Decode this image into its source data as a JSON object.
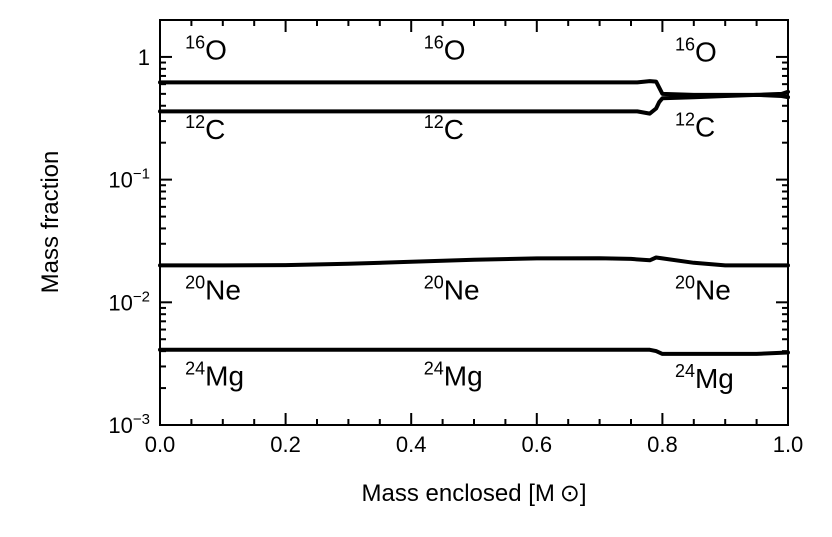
{
  "chart_data": {
    "type": "line",
    "title": "",
    "xlabel": "Mass enclosed [M ⊙]",
    "ylabel": "Mass fraction",
    "xlim": [
      0.0,
      1.0
    ],
    "ylim": [
      0.001,
      2.0
    ],
    "yscale": "log",
    "grid": false,
    "legend": "none",
    "x_ticks": [
      {
        "value": 0.0,
        "label": "0.0"
      },
      {
        "value": 0.2,
        "label": "0.2"
      },
      {
        "value": 0.4,
        "label": "0.4"
      },
      {
        "value": 0.6,
        "label": "0.6"
      },
      {
        "value": 0.8,
        "label": "0.8"
      },
      {
        "value": 1.0,
        "label": "1.0"
      }
    ],
    "y_ticks": [
      {
        "value": 1,
        "base": "1",
        "exp": ""
      },
      {
        "value": 0.1,
        "base": "10",
        "exp": "−1"
      },
      {
        "value": 0.01,
        "base": "10",
        "exp": "−2"
      },
      {
        "value": 0.001,
        "base": "10",
        "exp": "−3"
      }
    ],
    "series": [
      {
        "x": [
          0.0,
          0.2,
          0.4,
          0.6,
          0.7,
          0.76,
          0.78,
          0.79,
          0.795,
          0.8,
          0.85,
          0.9,
          0.95,
          0.99,
          1.0
        ],
        "y": [
          0.62,
          0.62,
          0.62,
          0.62,
          0.62,
          0.62,
          0.635,
          0.63,
          0.56,
          0.5,
          0.49,
          0.49,
          0.49,
          0.5,
          0.52
        ]
      },
      {
        "x": [
          0.0,
          0.2,
          0.4,
          0.6,
          0.7,
          0.76,
          0.78,
          0.79,
          0.795,
          0.8,
          0.85,
          0.9,
          0.95,
          0.99,
          1.0
        ],
        "y": [
          0.36,
          0.36,
          0.36,
          0.36,
          0.36,
          0.36,
          0.345,
          0.38,
          0.43,
          0.46,
          0.47,
          0.48,
          0.49,
          0.48,
          0.47
        ]
      },
      {
        "x": [
          0.0,
          0.1,
          0.2,
          0.3,
          0.4,
          0.5,
          0.6,
          0.7,
          0.75,
          0.78,
          0.79,
          0.8,
          0.85,
          0.9,
          0.95,
          1.0
        ],
        "y": [
          0.02,
          0.02,
          0.0201,
          0.0206,
          0.0214,
          0.0222,
          0.0228,
          0.0229,
          0.0226,
          0.022,
          0.0232,
          0.0228,
          0.021,
          0.02,
          0.02,
          0.02
        ]
      },
      {
        "x": [
          0.0,
          0.2,
          0.4,
          0.6,
          0.7,
          0.78,
          0.79,
          0.8,
          0.85,
          0.9,
          0.95,
          1.0
        ],
        "y": [
          0.0041,
          0.0041,
          0.0041,
          0.0041,
          0.0041,
          0.0041,
          0.004,
          0.0038,
          0.0038,
          0.0038,
          0.0038,
          0.0039
        ]
      }
    ],
    "annotations": [
      {
        "sup": "16",
        "base": "O",
        "x": 0.04,
        "y": 0.95
      },
      {
        "sup": "16",
        "base": "O",
        "x": 0.42,
        "y": 0.95
      },
      {
        "sup": "16",
        "base": "O",
        "x": 0.82,
        "y": 0.92
      },
      {
        "sup": "12",
        "base": "C",
        "x": 0.04,
        "y": 0.215
      },
      {
        "sup": "12",
        "base": "C",
        "x": 0.42,
        "y": 0.215
      },
      {
        "sup": "12",
        "base": "C",
        "x": 0.82,
        "y": 0.225
      },
      {
        "sup": "20",
        "base": "Ne",
        "x": 0.04,
        "y": 0.0105
      },
      {
        "sup": "20",
        "base": "Ne",
        "x": 0.42,
        "y": 0.0105
      },
      {
        "sup": "20",
        "base": "Ne",
        "x": 0.82,
        "y": 0.0105
      },
      {
        "sup": "24",
        "base": "Mg",
        "x": 0.04,
        "y": 0.0021
      },
      {
        "sup": "24",
        "base": "Mg",
        "x": 0.42,
        "y": 0.0021
      },
      {
        "sup": "24",
        "base": "Mg",
        "x": 0.82,
        "y": 0.002
      }
    ]
  }
}
